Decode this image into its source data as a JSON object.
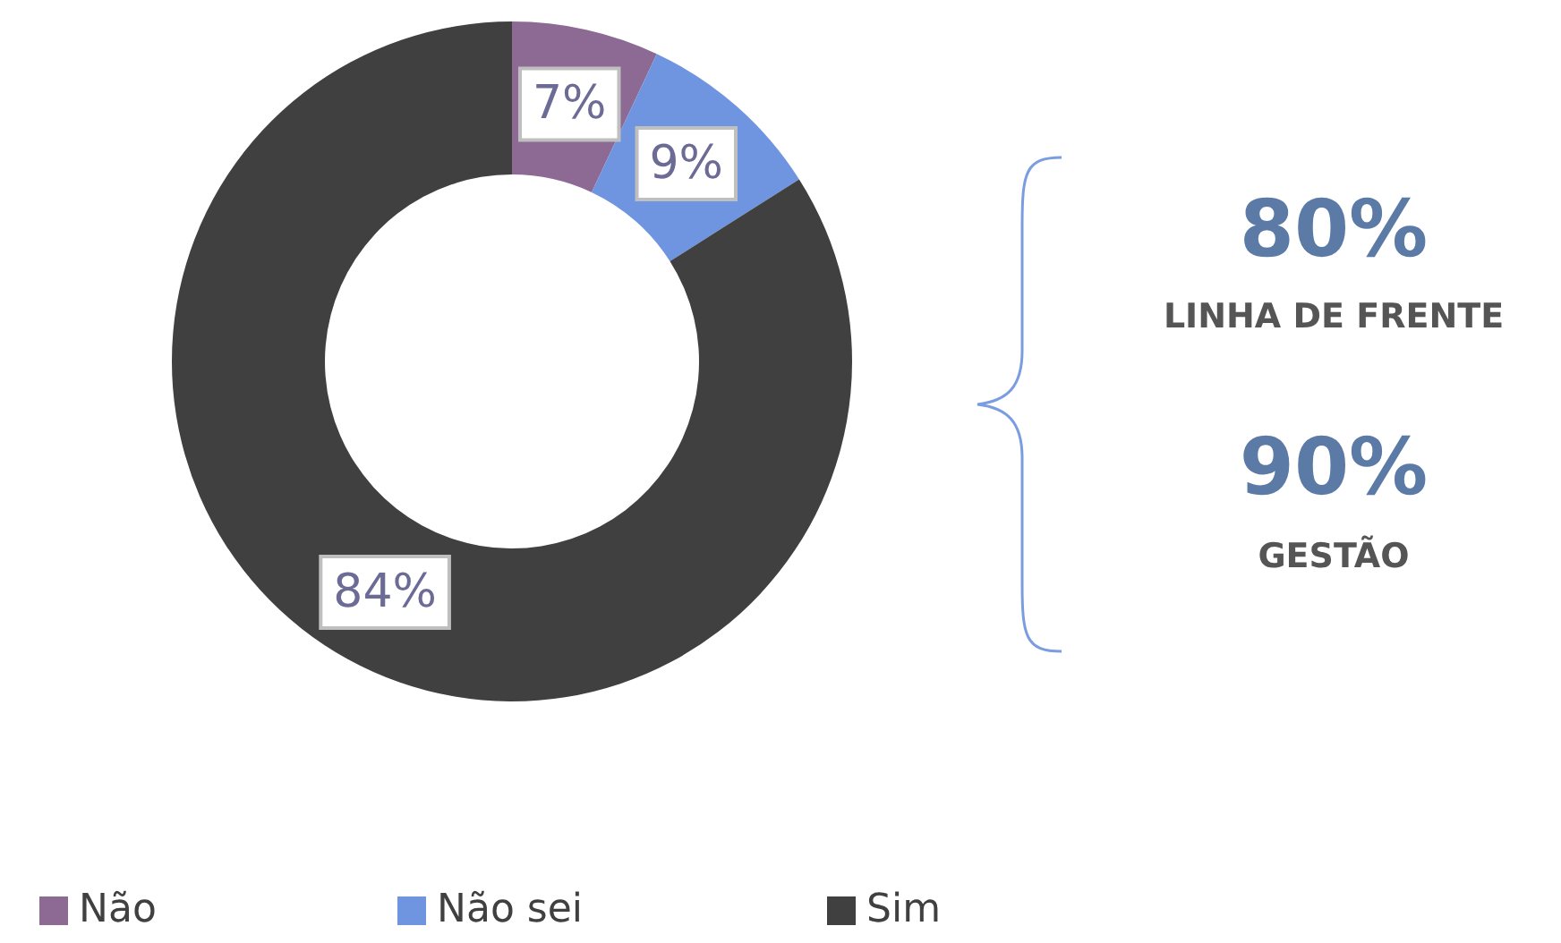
{
  "chart_data": {
    "type": "donut",
    "categories": [
      "Não",
      "Não sei",
      "Sim"
    ],
    "values": [
      7,
      9,
      84
    ],
    "colors": [
      "#8c6a94",
      "#6f95e0",
      "#404040"
    ],
    "value_labels": [
      "7%",
      "9%",
      "84%"
    ],
    "legend": "bottom",
    "annotations": [
      "80%",
      "LINHA DE FRENTE",
      "90%",
      "GESTÃO"
    ]
  }
}
